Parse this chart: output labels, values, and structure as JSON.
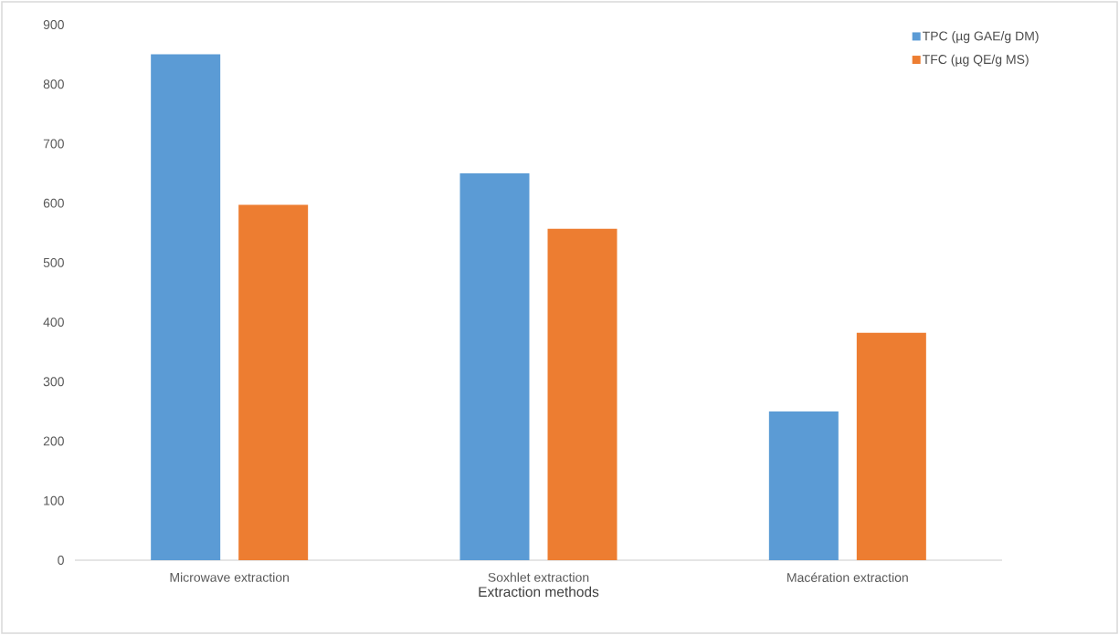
{
  "chart_data": {
    "type": "bar",
    "xlabel": "Extraction methods",
    "categories": [
      "Microwave extraction",
      "Soxhlet extraction",
      "Macération extraction"
    ],
    "series": [
      {
        "name": "TPC (µg GAE/g DM)",
        "color": "#5b9bd5",
        "values": [
          850,
          650,
          250
        ]
      },
      {
        "name": "TFC (µg QE/g MS)",
        "color": "#ed7d31",
        "values": [
          597,
          557,
          382
        ]
      }
    ],
    "ylim": [
      0,
      900
    ],
    "yticks": [
      0,
      100,
      200,
      300,
      400,
      500,
      600,
      700,
      800,
      900
    ],
    "grid": false,
    "legend": "top right"
  }
}
